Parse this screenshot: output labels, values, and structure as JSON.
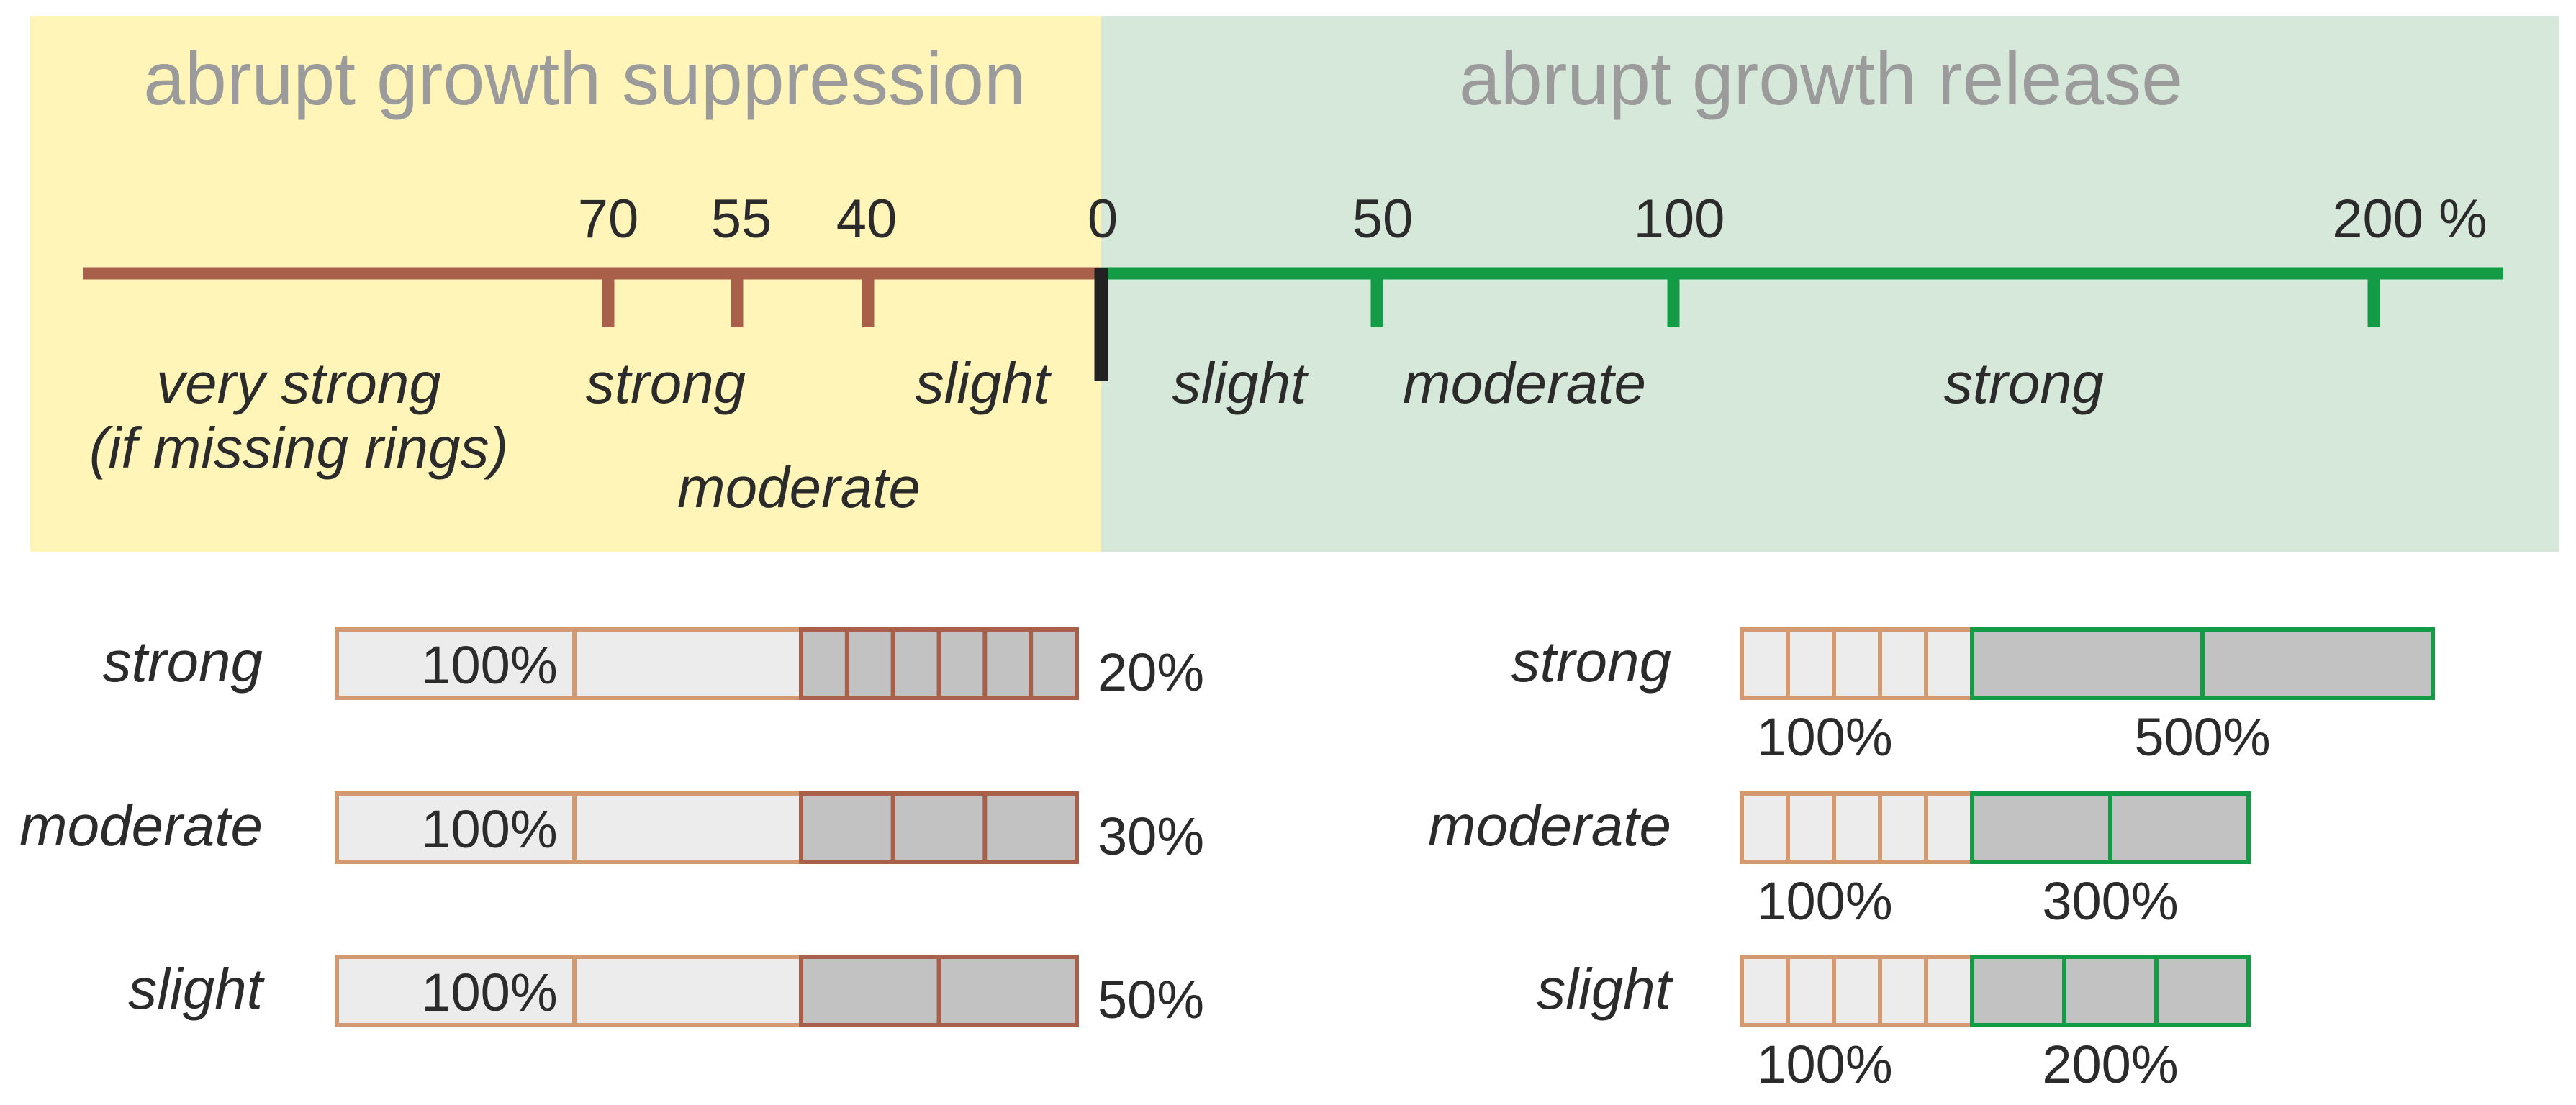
{
  "panels": {
    "suppression": {
      "title": "abrupt growth suppression",
      "color": "#fff5b8"
    },
    "release": {
      "title": "abrupt growth release",
      "color": "#d6e8da"
    }
  },
  "scale": {
    "zero_label": "0",
    "suppression_ticks": [
      "70",
      "55",
      "40"
    ],
    "release_ticks": [
      "50",
      "100",
      "200 %"
    ],
    "suppression_color": "#a9604b",
    "release_color": "#139b45",
    "zero_color": "#222222",
    "suppression_categories": {
      "very_strong_line1": "very strong",
      "very_strong_line2": "(if missing rings)",
      "strong": "strong",
      "moderate": "moderate",
      "slight": "slight"
    },
    "release_categories": {
      "slight": "slight",
      "moderate": "moderate",
      "strong": "strong"
    }
  },
  "examples": {
    "suppression": [
      {
        "label": "strong",
        "before": "100%",
        "after": "20%",
        "after_value": 20,
        "after_rings": 6
      },
      {
        "label": "moderate",
        "before": "100%",
        "after": "30%",
        "after_value": 30,
        "after_rings": 3
      },
      {
        "label": "slight",
        "before": "100%",
        "after": "50%",
        "after_value": 50,
        "after_rings": 2
      }
    ],
    "release": [
      {
        "label": "strong",
        "before": "100%",
        "after": "500%",
        "after_value": 500,
        "after_rings": 2
      },
      {
        "label": "moderate",
        "before": "100%",
        "after": "300%",
        "after_value": 300,
        "after_rings": 2
      },
      {
        "label": "slight",
        "before": "100%",
        "after": "200%",
        "after_value": 200,
        "after_rings": 3
      }
    ],
    "before_border_color": "#d39a72",
    "before_fill": "#ececec",
    "after_fill": "#c2c2c2",
    "suppression_after_border": "#a9604b",
    "release_after_border": "#139b45"
  }
}
